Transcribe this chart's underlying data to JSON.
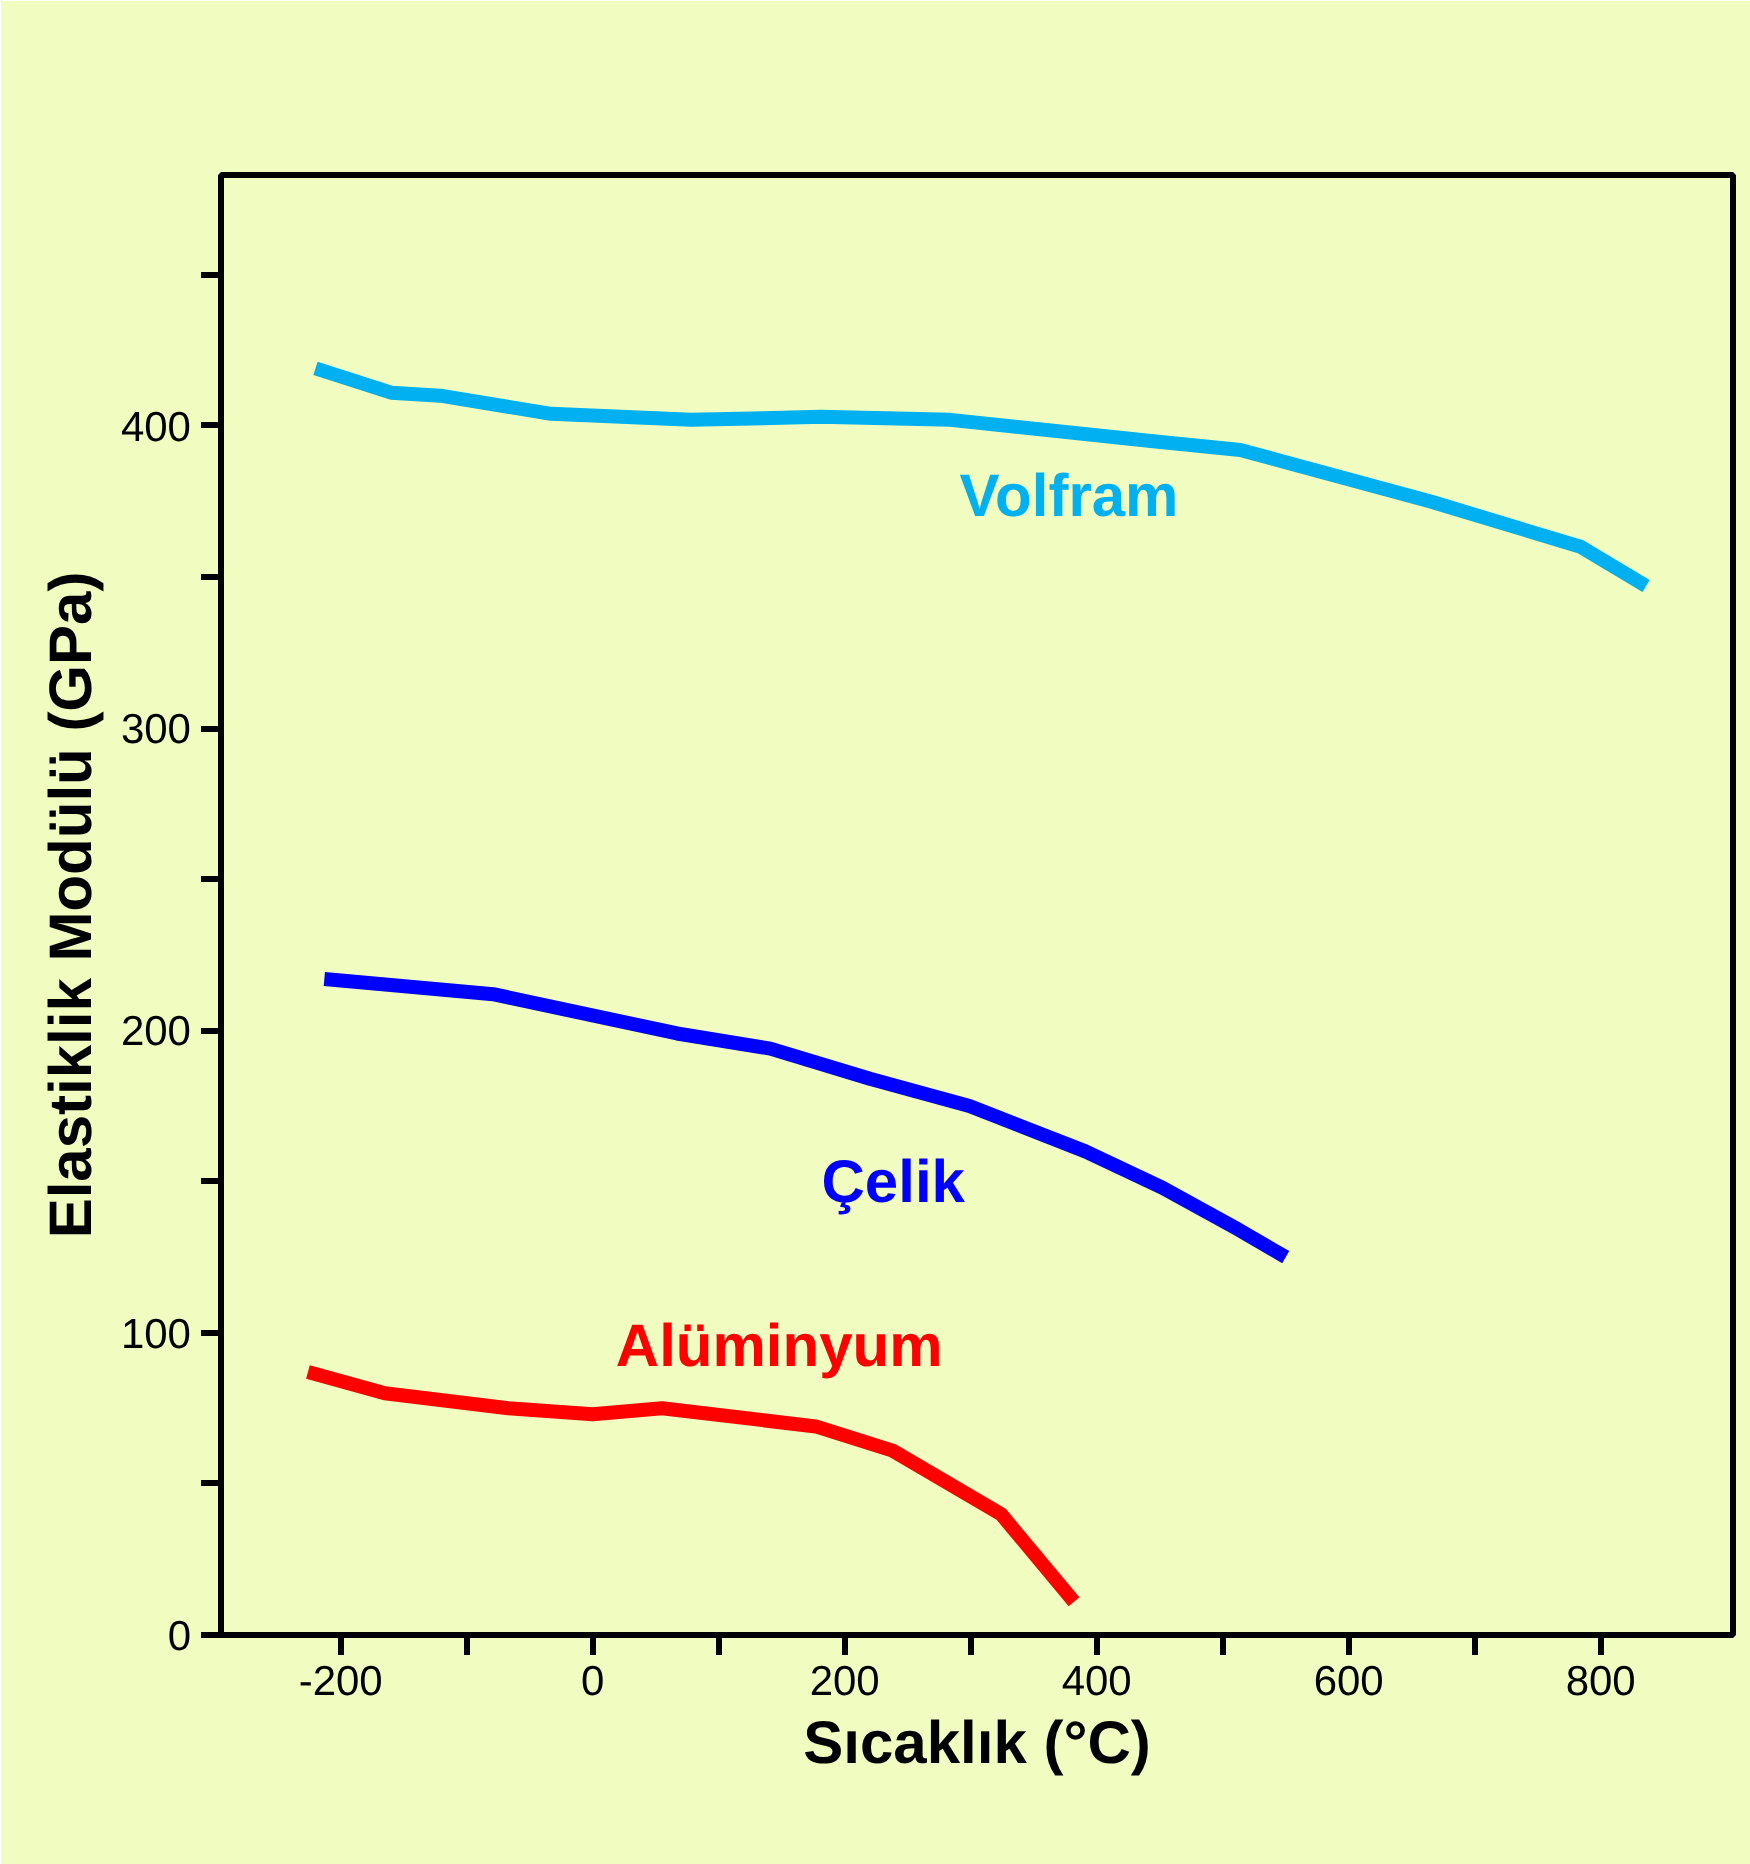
{
  "chart_data": {
    "type": "line",
    "xlabel": "Sıcaklık (°C)",
    "ylabel": "Elastiklik Modülü (GPa)",
    "xlim": [
      -295,
      905
    ],
    "xticks": [
      -200,
      {
        "value": -100,
        "label": null
      },
      0,
      {
        "value": 100,
        "label": null
      },
      200,
      {
        "value": 300,
        "label": null
      },
      400,
      {
        "value": 500,
        "label": null
      },
      600,
      {
        "value": 700,
        "label": null
      },
      800
    ],
    "ylim": [
      0,
      483
    ],
    "yticks": [
      0,
      {
        "value": 50,
        "label": null
      },
      100,
      {
        "value": 150,
        "label": null
      },
      200,
      {
        "value": 250,
        "label": null
      },
      300,
      {
        "value": 350,
        "label": null
      },
      400,
      {
        "value": 450,
        "label": null
      }
    ],
    "grid": false,
    "legend": false,
    "marker": "none",
    "line_style": "solid",
    "series": [
      {
        "name": "Volfram",
        "color": "#00b0f0",
        "x": [
          -220,
          -160,
          -121,
          -33,
          78,
          181,
          284,
          443,
          514,
          665,
          784,
          836
        ],
        "values": [
          419,
          411,
          410,
          404,
          402,
          403,
          402,
          395,
          392,
          375,
          360,
          347
        ]
      },
      {
        "name": "Çelik",
        "color": "#0000ff",
        "x": [
          -213,
          -79,
          67,
          141,
          220,
          299,
          391,
          452,
          513,
          550
        ],
        "values": [
          217,
          212,
          199,
          194,
          184,
          175,
          160,
          148,
          134,
          125
        ]
      },
      {
        "name": "Alüminyum",
        "color": "#ff0000",
        "x": [
          -226,
          -165,
          -67,
          0,
          55,
          177,
          238,
          324,
          382
        ],
        "values": [
          87,
          80,
          75,
          73,
          75,
          69,
          61,
          40,
          11
        ]
      }
    ]
  }
}
